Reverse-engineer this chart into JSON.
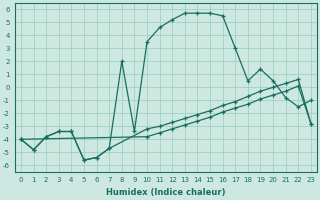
{
  "title": "",
  "xlabel": "Humidex (Indice chaleur)",
  "xlim": [
    -0.5,
    23.5
  ],
  "ylim": [
    -6.5,
    6.5
  ],
  "xticks": [
    0,
    1,
    2,
    3,
    4,
    5,
    6,
    7,
    8,
    9,
    10,
    11,
    12,
    13,
    14,
    15,
    16,
    17,
    18,
    19,
    20,
    21,
    22,
    23
  ],
  "yticks": [
    -6,
    -5,
    -4,
    -3,
    -2,
    -1,
    0,
    1,
    2,
    3,
    4,
    5,
    6
  ],
  "bg_color": "#cce8e0",
  "grid_color": "#99ccbb",
  "line_color": "#1a6e60",
  "line1_x": [
    0,
    1,
    2,
    3,
    4,
    5,
    6,
    7,
    8,
    9,
    10,
    11,
    12,
    13,
    14,
    15,
    16,
    17,
    18,
    19,
    20,
    21,
    22,
    23
  ],
  "line1_y": [
    -4.0,
    -4.8,
    -3.8,
    -3.4,
    -3.4,
    -5.6,
    -5.4,
    -4.7,
    2.0,
    -3.4,
    3.5,
    4.6,
    5.2,
    5.7,
    5.7,
    5.7,
    5.5,
    3.0,
    0.5,
    1.4,
    0.5,
    -0.8,
    -1.5,
    -1.0
  ],
  "line2_x": [
    0,
    1,
    2,
    3,
    4,
    5,
    6,
    7,
    10,
    11,
    12,
    13,
    14,
    15,
    16,
    17,
    18,
    19,
    20,
    21,
    22,
    23
  ],
  "line2_y": [
    -4.0,
    -4.8,
    -3.8,
    -3.4,
    -3.4,
    -5.6,
    -5.4,
    -4.7,
    -3.2,
    -3.0,
    -2.7,
    -2.4,
    -2.1,
    -1.8,
    -1.4,
    -1.1,
    -0.7,
    -0.3,
    0.0,
    0.3,
    0.6,
    -2.8
  ],
  "line3_x": [
    0,
    10,
    11,
    12,
    13,
    14,
    15,
    16,
    17,
    18,
    19,
    20,
    21,
    22,
    23
  ],
  "line3_y": [
    -4.0,
    -3.8,
    -3.5,
    -3.2,
    -2.9,
    -2.6,
    -2.3,
    -1.9,
    -1.6,
    -1.3,
    -0.9,
    -0.6,
    -0.3,
    0.1,
    -2.8
  ]
}
